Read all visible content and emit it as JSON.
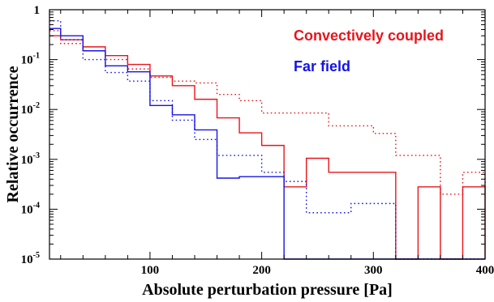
{
  "chart_data": {
    "type": "line",
    "xlabel": "Absolute perturbation pressure [Pa]",
    "ylabel": "Relative occurrence",
    "xlim": [
      10,
      400
    ],
    "ylim": [
      1e-05,
      1
    ],
    "yscale": "log",
    "grid": false,
    "legend_placement": "top-right",
    "xticks": [
      100,
      200,
      300,
      400
    ],
    "xtick_labels": [
      "100",
      "200",
      "300",
      "400"
    ],
    "yticks": [
      1e-05,
      0.0001,
      0.001,
      0.01,
      0.1,
      1
    ],
    "ytick_labels": [
      {
        "base": "10",
        "exp": "-5"
      },
      {
        "base": "10",
        "exp": "-4"
      },
      {
        "base": "10",
        "exp": "-3"
      },
      {
        "base": "10",
        "exp": "-2"
      },
      {
        "base": "10",
        "exp": "-1"
      },
      {
        "base": "1",
        "exp": ""
      }
    ],
    "bin_edges": [
      10,
      20,
      40,
      60,
      80,
      100,
      120,
      140,
      160,
      180,
      200,
      220,
      240,
      260,
      280,
      300,
      320,
      340,
      360,
      380,
      400
    ],
    "series": [
      {
        "name": "Convectively coupled",
        "style": "solid",
        "color": "#e8141b",
        "values": [
          0.3,
          0.25,
          0.18,
          0.12,
          0.08,
          0.047,
          0.03,
          0.016,
          0.0068,
          0.0034,
          0.0019,
          0.00028,
          0.00105,
          0.00055,
          0.00055,
          0.00055,
          0,
          0.00028,
          0,
          0.00028,
          0
        ]
      },
      {
        "name": "Convectively coupled (dotted)",
        "style": "dotted",
        "color": "#e8141b",
        "values": [
          0.38,
          0.21,
          0.15,
          0.1,
          0.065,
          0.044,
          0.037,
          0.034,
          0.02,
          0.015,
          0.0085,
          0.0085,
          0.0085,
          0.0047,
          0.0047,
          0.0033,
          0.0012,
          0.0012,
          0.0002,
          0.00055,
          0.00028
        ]
      },
      {
        "name": "Far field",
        "style": "solid",
        "color": "#1414e6",
        "values": [
          0.42,
          0.3,
          0.15,
          0.075,
          0.057,
          0.012,
          0.0078,
          0.0039,
          0.00042,
          0.00045,
          0.00045,
          0,
          0,
          0,
          0,
          0,
          0,
          0,
          0,
          0,
          0
        ]
      },
      {
        "name": "Far field (dotted)",
        "style": "dotted",
        "color": "#1414e6",
        "values": [
          0.6,
          0.25,
          0.1,
          0.055,
          0.037,
          0.015,
          0.0061,
          0.0025,
          0.0012,
          0.0012,
          0.00055,
          0.00036,
          8.5e-05,
          8.5e-05,
          0.00013,
          0.00013,
          0,
          0,
          0,
          0,
          0
        ]
      }
    ],
    "legend": [
      {
        "label": "Convectively coupled",
        "color": "#e8141b"
      },
      {
        "label": "Far field",
        "color": "#1414e6"
      }
    ]
  }
}
